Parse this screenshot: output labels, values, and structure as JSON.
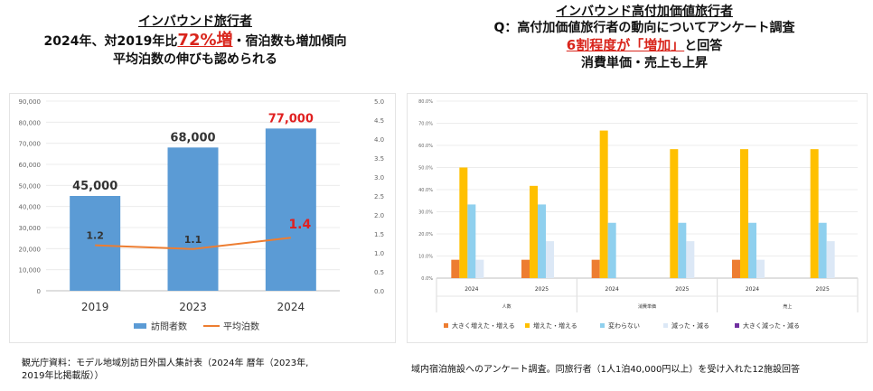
{
  "left": {
    "header": {
      "title": "インバウンド旅行者",
      "line2_pre": "2024年、対2019年比",
      "line2_highlight": "72%増",
      "line2_post": "・宿泊数も増加傾向",
      "line3": "平均泊数の伸びも認められる"
    },
    "footnote": {
      "line1": "観光庁資料：モデル地域別訪日外国人集計表（2024年 暦年（2023年,",
      "line2": "2019年比掲載版））"
    }
  },
  "right": {
    "header": {
      "title": "インバウンド高付加価値旅行者",
      "line2": "Q：高付加価値旅行者の動向についてアンケート調査",
      "line3_highlight": "6割程度が「増加」",
      "line3_post": "と回答",
      "line4": "消費単価・売上も上昇"
    },
    "footnote": "域内宿泊施設へのアンケート調査。同旅行者（1人1泊40,000円以上）を受け入れた12施設回答"
  },
  "chart_data": [
    {
      "type": "bar",
      "categories": [
        "2019",
        "2023",
        "2024"
      ],
      "series": [
        {
          "name": "訪問者数",
          "values": [
            45000,
            68000,
            77000
          ],
          "color": "#5b9bd5",
          "axis": "left"
        },
        {
          "name": "平均泊数",
          "values": [
            1.2,
            1.1,
            1.4
          ],
          "color": "#ed7d31",
          "axis": "right",
          "render": "line"
        }
      ],
      "bar_labels": [
        "45,000",
        "68,000",
        "77,000"
      ],
      "line_labels": [
        "1.2",
        "1.1",
        "1.4"
      ],
      "yticks_left": [
        "0",
        "10,000",
        "20,000",
        "30,000",
        "40,000",
        "50,000",
        "60,000",
        "70,000",
        "80,000",
        "90,000"
      ],
      "yticks_right": [
        "0.0",
        "0.5",
        "1.0",
        "1.5",
        "2.0",
        "2.5",
        "3.0",
        "3.5",
        "4.0",
        "4.5",
        "5.0"
      ],
      "ylim_left": [
        0,
        90000
      ],
      "ylim_right": [
        0,
        5
      ],
      "legend": [
        "訪問者数",
        "平均泊数"
      ],
      "highlight_color": "#e02020"
    },
    {
      "type": "bar",
      "groups": [
        "人数",
        "消費単価",
        "売上"
      ],
      "categories": [
        "2024",
        "2025",
        "2024",
        "2025",
        "2024",
        "2025"
      ],
      "series": [
        {
          "name": "大きく増えた・増える",
          "values": [
            8.3,
            8.3,
            8.3,
            0,
            8.3,
            0
          ],
          "color": "#ed7d31"
        },
        {
          "name": "増えた・増える",
          "values": [
            50.0,
            41.7,
            66.7,
            58.3,
            58.3,
            58.3
          ],
          "color": "#ffc000"
        },
        {
          "name": "変わらない",
          "values": [
            33.3,
            33.3,
            25.0,
            25.0,
            25.0,
            25.0
          ],
          "color": "#8fd0ee"
        },
        {
          "name": "減った・減る",
          "values": [
            8.3,
            16.7,
            0,
            16.7,
            8.3,
            16.7
          ],
          "color": "#dce8f6"
        },
        {
          "name": "大きく減った・減る",
          "values": [
            0,
            0,
            0,
            0,
            0,
            0
          ],
          "color": "#7030a0"
        }
      ],
      "yticks": [
        "0.0%",
        "10.0%",
        "20.0%",
        "30.0%",
        "40.0%",
        "50.0%",
        "60.0%",
        "70.0%",
        "80.0%"
      ],
      "ylim": [
        0,
        80
      ]
    }
  ]
}
